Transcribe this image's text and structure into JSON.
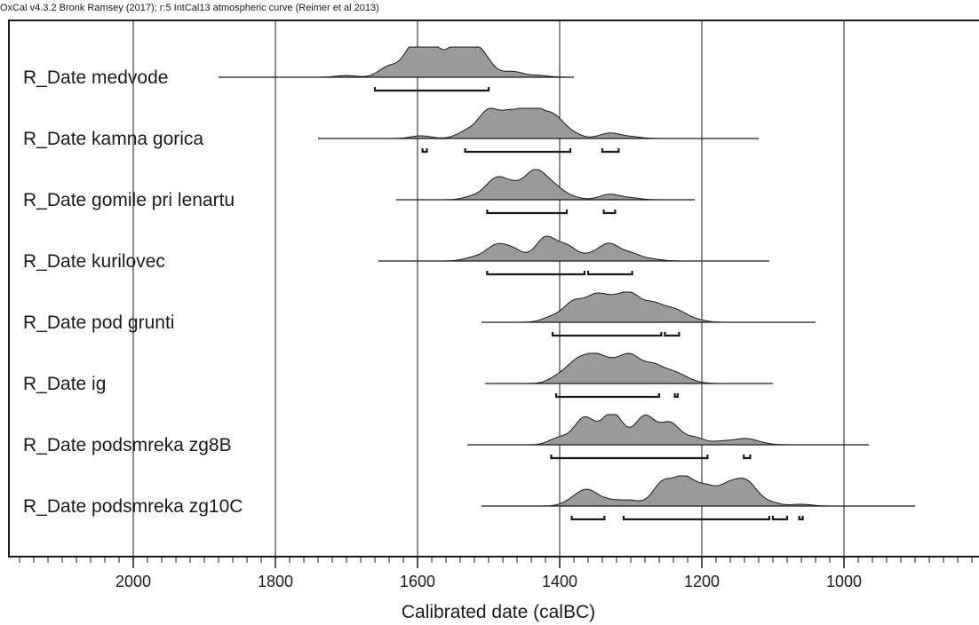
{
  "header": "OxCal v4.3.2 Bronk Ramsey (2017); r:5 IntCal13 atmospheric curve (Reimer et al 2013)",
  "chart_data": {
    "type": "area",
    "orientation": "reversed-x",
    "xlabel": "Calibrated date (calBC)",
    "xlim": [
      2175,
      1000
    ],
    "x_ticks": [
      2000,
      1800,
      1600,
      1400,
      1200,
      1000
    ],
    "grid": true,
    "colors": {
      "fill": "#9a9a9a",
      "line": "#1a1a1a"
    },
    "series": [
      {
        "name": "R_Date medvode",
        "range": [
          1880,
          1380
        ],
        "peaks": [
          [
            1700,
            2
          ],
          [
            1640,
            12
          ],
          [
            1605,
            34
          ],
          [
            1580,
            32
          ],
          [
            1545,
            34
          ],
          [
            1515,
            30
          ],
          [
            1495,
            4
          ],
          [
            1465,
            6
          ],
          [
            1430,
            2
          ]
        ],
        "intervals": [
          [
            1660,
            1500
          ]
        ]
      },
      {
        "name": "R_Date kamna gorica",
        "range": [
          1740,
          1120
        ],
        "peaks": [
          [
            1595,
            3
          ],
          [
            1530,
            8
          ],
          [
            1500,
            30
          ],
          [
            1470,
            26
          ],
          [
            1440,
            34
          ],
          [
            1410,
            24
          ],
          [
            1385,
            6
          ],
          [
            1330,
            6
          ],
          [
            1300,
            2
          ]
        ],
        "intervals": [
          [
            1593,
            1587
          ],
          [
            1533,
            1385
          ],
          [
            1340,
            1317
          ]
        ]
      },
      {
        "name": "R_Date gomile pri lenartu",
        "range": [
          1630,
          1210
        ],
        "peaks": [
          [
            1520,
            4
          ],
          [
            1490,
            22
          ],
          [
            1465,
            14
          ],
          [
            1435,
            30
          ],
          [
            1410,
            14
          ],
          [
            1385,
            3
          ],
          [
            1330,
            6
          ],
          [
            1300,
            2
          ]
        ],
        "intervals": [
          [
            1502,
            1390
          ],
          [
            1338,
            1322
          ]
        ]
      },
      {
        "name": "R_Date kurilovec",
        "range": [
          1655,
          1105
        ],
        "peaks": [
          [
            1520,
            4
          ],
          [
            1490,
            16
          ],
          [
            1465,
            12
          ],
          [
            1420,
            26
          ],
          [
            1390,
            16
          ],
          [
            1355,
            6
          ],
          [
            1330,
            18
          ],
          [
            1300,
            8
          ],
          [
            1270,
            2
          ]
        ],
        "intervals": [
          [
            1502,
            1365
          ],
          [
            1360,
            1298
          ]
        ]
      },
      {
        "name": "R_Date pod grunti",
        "range": [
          1510,
          1040
        ],
        "peaks": [
          [
            1410,
            6
          ],
          [
            1380,
            22
          ],
          [
            1350,
            26
          ],
          [
            1325,
            20
          ],
          [
            1300,
            28
          ],
          [
            1270,
            18
          ],
          [
            1250,
            6
          ],
          [
            1235,
            10
          ],
          [
            1210,
            3
          ]
        ],
        "intervals": [
          [
            1410,
            1257
          ],
          [
            1252,
            1232
          ]
        ]
      },
      {
        "name": "R_Date ig",
        "range": [
          1505,
          1100
        ],
        "peaks": [
          [
            1400,
            8
          ],
          [
            1375,
            22
          ],
          [
            1350,
            26
          ],
          [
            1325,
            18
          ],
          [
            1300,
            28
          ],
          [
            1270,
            18
          ],
          [
            1250,
            6
          ],
          [
            1235,
            8
          ],
          [
            1215,
            2
          ]
        ],
        "intervals": [
          [
            1405,
            1260
          ],
          [
            1238,
            1234
          ]
        ]
      },
      {
        "name": "R_Date podsmreka zg8B",
        "range": [
          1530,
          965
        ],
        "peaks": [
          [
            1400,
            8
          ],
          [
            1365,
            30
          ],
          [
            1330,
            22
          ],
          [
            1320,
            16
          ],
          [
            1280,
            32
          ],
          [
            1245,
            24
          ],
          [
            1210,
            8
          ],
          [
            1170,
            4
          ],
          [
            1140,
            6
          ],
          [
            1120,
            2
          ]
        ],
        "intervals": [
          [
            1412,
            1192
          ],
          [
            1141,
            1132
          ]
        ]
      },
      {
        "name": "R_Date podsmreka zg10C",
        "range": [
          1510,
          900
        ],
        "peaks": [
          [
            1380,
            6
          ],
          [
            1360,
            16
          ],
          [
            1330,
            6
          ],
          [
            1300,
            6
          ],
          [
            1255,
            26
          ],
          [
            1225,
            30
          ],
          [
            1195,
            20
          ],
          [
            1165,
            18
          ],
          [
            1150,
            8
          ],
          [
            1135,
            22
          ],
          [
            1105,
            4
          ],
          [
            1060,
            2
          ]
        ],
        "intervals": [
          [
            1383,
            1337
          ],
          [
            1310,
            1105
          ],
          [
            1100,
            1080
          ],
          [
            1063,
            1058
          ]
        ]
      }
    ]
  }
}
